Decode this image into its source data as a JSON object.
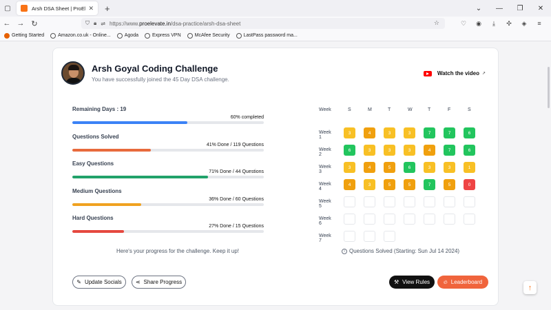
{
  "browser": {
    "tab_title": "Arsh DSA Sheet | ProElevate",
    "url_domain": "proelevate.in",
    "url_prefix": "https://www.",
    "url_path": "/dsa-practice/arsh-dsa-sheet",
    "bookmarks": [
      "Getting Started",
      "Amazon.co.uk - Online...",
      "Agoda",
      "Express VPN",
      "McAfee Security",
      "LastPass password ma..."
    ]
  },
  "header": {
    "title": "Arsh Goyal Coding Challenge",
    "subtitle": "You have successfully joined the 45 Day DSA challenge.",
    "watch_label": "Watch the video"
  },
  "stats": [
    {
      "name": "Remaining Days : 19",
      "detail": "60% completed",
      "fraction": 0.6,
      "color": "#3b82f6"
    },
    {
      "name": "Questions Solved",
      "detail": "41% Done / 119 Questions",
      "fraction": 0.41,
      "color": "#e86a3c"
    },
    {
      "name": "Easy Questions",
      "detail": "71% Done / 44 Questions",
      "fraction": 0.71,
      "color": "#21a26a"
    },
    {
      "name": "Medium Questions",
      "detail": "36% Done / 60 Questions",
      "fraction": 0.36,
      "color": "#f0a220"
    },
    {
      "name": "Hard Questions",
      "detail": "27% Done / 15 Questions",
      "fraction": 0.27,
      "color": "#e5483f"
    }
  ],
  "encouragement": "Here's your progress for the challenge. Keep it up!",
  "calendar": {
    "week_header": "Week",
    "days": [
      "S",
      "M",
      "T",
      "W",
      "T",
      "F",
      "S"
    ],
    "weeks": [
      {
        "label": "Week 1",
        "cells": [
          {
            "v": "3",
            "c": "#f8c025"
          },
          {
            "v": "4",
            "c": "#f0a00e"
          },
          {
            "v": "3",
            "c": "#f8c025"
          },
          {
            "v": "3",
            "c": "#f8c025"
          },
          {
            "v": "7",
            "c": "#22c55e"
          },
          {
            "v": "7",
            "c": "#22c55e"
          },
          {
            "v": "6",
            "c": "#22c55e"
          }
        ]
      },
      {
        "label": "Week 2",
        "cells": [
          {
            "v": "6",
            "c": "#22c55e"
          },
          {
            "v": "3",
            "c": "#f8c025"
          },
          {
            "v": "3",
            "c": "#f8c025"
          },
          {
            "v": "3",
            "c": "#f8c025"
          },
          {
            "v": "4",
            "c": "#f0a00e"
          },
          {
            "v": "7",
            "c": "#22c55e"
          },
          {
            "v": "6",
            "c": "#22c55e"
          }
        ]
      },
      {
        "label": "Week 3",
        "cells": [
          {
            "v": "3",
            "c": "#f8c025"
          },
          {
            "v": "4",
            "c": "#f0a00e"
          },
          {
            "v": "5",
            "c": "#f0a00e"
          },
          {
            "v": "6",
            "c": "#22c55e"
          },
          {
            "v": "3",
            "c": "#f8c025"
          },
          {
            "v": "3",
            "c": "#f8c025"
          },
          {
            "v": "1",
            "c": "#f8c025"
          }
        ]
      },
      {
        "label": "Week 4",
        "cells": [
          {
            "v": "4",
            "c": "#f0a00e"
          },
          {
            "v": "3",
            "c": "#f8c025"
          },
          {
            "v": "5",
            "c": "#f0a00e"
          },
          {
            "v": "5",
            "c": "#f0a00e"
          },
          {
            "v": "7",
            "c": "#22c55e"
          },
          {
            "v": "5",
            "c": "#f0a00e"
          },
          {
            "v": "0",
            "c": "#ef4444"
          }
        ]
      },
      {
        "label": "Week 5",
        "cells": [
          {
            "v": "",
            "c": ""
          },
          {
            "v": "",
            "c": ""
          },
          {
            "v": "",
            "c": ""
          },
          {
            "v": "",
            "c": ""
          },
          {
            "v": "",
            "c": ""
          },
          {
            "v": "",
            "c": ""
          },
          {
            "v": "",
            "c": ""
          }
        ]
      },
      {
        "label": "Week 6",
        "cells": [
          {
            "v": "",
            "c": ""
          },
          {
            "v": "",
            "c": ""
          },
          {
            "v": "",
            "c": ""
          },
          {
            "v": "",
            "c": ""
          },
          {
            "v": "",
            "c": ""
          },
          {
            "v": "",
            "c": ""
          },
          {
            "v": "",
            "c": ""
          }
        ]
      },
      {
        "label": "Week 7",
        "cells": [
          {
            "v": "",
            "c": ""
          },
          {
            "v": "",
            "c": ""
          },
          {
            "v": "",
            "c": ""
          }
        ]
      }
    ],
    "note": "Questions Solved (Starting: Sun Jul 14 2024)"
  },
  "actions": {
    "update_socials": "Update Socials",
    "share_progress": "Share Progress",
    "view_rules": "View Rules",
    "leaderboard": "Leaderboard"
  }
}
